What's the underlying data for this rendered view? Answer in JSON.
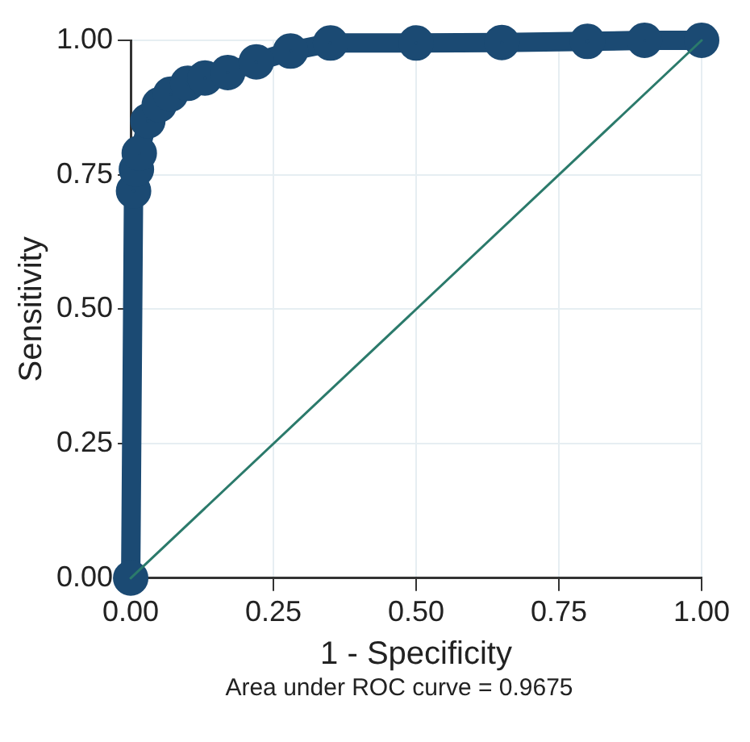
{
  "chart_data": {
    "type": "line",
    "xlabel": "1 - Specificity",
    "ylabel": "Sensitivity",
    "annotations": [
      "Area under ROC curve = 0.9675"
    ],
    "xlim": [
      0,
      1
    ],
    "ylim": [
      0,
      1
    ],
    "xticks": [
      {
        "value": 0,
        "label": "0.00"
      },
      {
        "value": 0.25,
        "label": "0.25"
      },
      {
        "value": 0.5,
        "label": "0.50"
      },
      {
        "value": 0.75,
        "label": "0.75"
      },
      {
        "value": 1,
        "label": "1.00"
      }
    ],
    "yticks": [
      {
        "value": 0,
        "label": "0.00"
      },
      {
        "value": 0.25,
        "label": "0.25"
      },
      {
        "value": 0.5,
        "label": "0.50"
      },
      {
        "value": 0.75,
        "label": "0.75"
      },
      {
        "value": 1,
        "label": "1.00"
      }
    ],
    "grid": true,
    "legend": false,
    "marker": "circle",
    "series": [
      {
        "color": "#1b4a73",
        "x": [
          0,
          0.005,
          0.01,
          0.015,
          0.03,
          0.05,
          0.07,
          0.1,
          0.13,
          0.17,
          0.22,
          0.28,
          0.35,
          0.5,
          0.65,
          0.8,
          0.9,
          1
        ],
        "values": [
          0,
          0.72,
          0.76,
          0.79,
          0.85,
          0.88,
          0.9,
          0.92,
          0.93,
          0.94,
          0.96,
          0.98,
          0.995,
          0.995,
          0.996,
          0.998,
          1,
          1
        ]
      },
      {
        "type": "line",
        "marker": "none",
        "color": "#2b7a6b",
        "x": [
          0,
          1
        ],
        "values": [
          0,
          1
        ]
      }
    ]
  }
}
